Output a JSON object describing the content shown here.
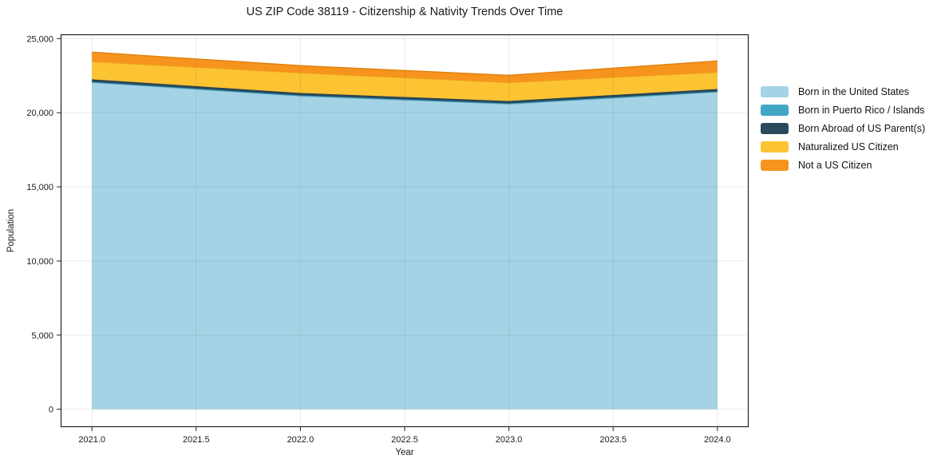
{
  "chart_data": {
    "type": "area",
    "stacked": true,
    "title": "US ZIP Code 38119 - Citizenship & Nativity Trends Over Time",
    "xlabel": "Year",
    "ylabel": "Population",
    "x": [
      2021,
      2022,
      2023,
      2024
    ],
    "series": [
      {
        "name": "Born in the United States",
        "color": "#a5d3e6",
        "edge": "#90c6dc",
        "values": [
          22030,
          21110,
          20570,
          21380
        ]
      },
      {
        "name": "Born in Puerto Rico / Islands",
        "color": "#41a6c4",
        "edge": "#3795b2",
        "values": [
          50,
          60,
          60,
          60
        ]
      },
      {
        "name": "Born Abroad of US Parent(s)",
        "color": "#2a4a5c",
        "edge": "#223d4c",
        "values": [
          170,
          160,
          160,
          160
        ]
      },
      {
        "name": "Naturalized US Citizen",
        "color": "#fcc433",
        "edge": "#e9b11f",
        "values": [
          1190,
          1350,
          1240,
          1130
        ]
      },
      {
        "name": "Not a US Citizen",
        "color": "#f7941e",
        "edge": "#e08312",
        "values": [
          640,
          490,
          490,
          760
        ]
      }
    ],
    "totals": [
      24080,
      23170,
      22520,
      23490
    ],
    "xlim": [
      2020.85,
      2024.15
    ],
    "ylim": [
      -1204,
      25288
    ],
    "x_ticks": [
      2021.0,
      2021.5,
      2022.0,
      2022.5,
      2023.0,
      2023.5,
      2024.0
    ],
    "x_tick_labels": [
      "2021.0",
      "2021.5",
      "2022.0",
      "2022.5",
      "2023.0",
      "2023.5",
      "2024.0"
    ],
    "y_ticks": [
      0,
      5000,
      10000,
      15000,
      20000,
      25000
    ],
    "y_tick_labels": [
      "0",
      "5,000",
      "10,000",
      "15,000",
      "20,000",
      "25,000"
    ],
    "grid": true,
    "grid_color": "rgba(0,0,0,0.08)",
    "spine_color": "#222222",
    "legend_position": "right of plot, no frame"
  }
}
